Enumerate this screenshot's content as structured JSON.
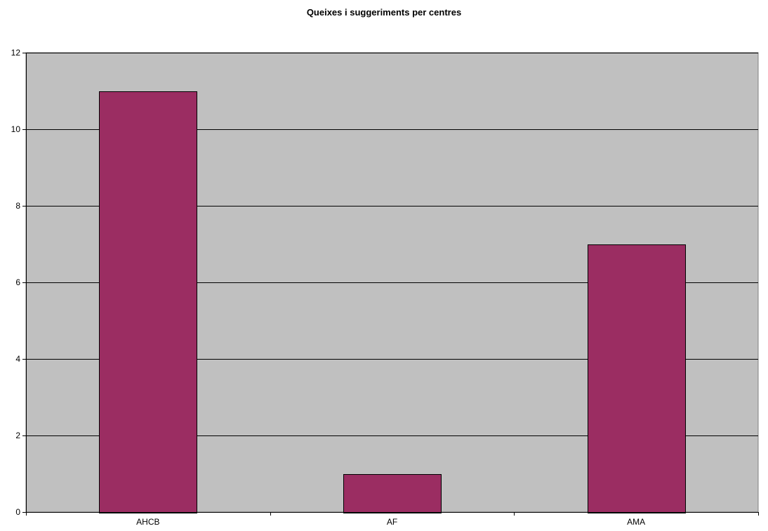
{
  "chart_data": {
    "type": "bar",
    "title": "Queixes i suggeriments per centres",
    "xlabel": "",
    "ylabel": "",
    "categories": [
      "AHCB",
      "AF",
      "AMA"
    ],
    "values": [
      11,
      1,
      7
    ],
    "ylim": [
      0,
      12
    ],
    "yticks": [
      0,
      2,
      4,
      6,
      8,
      10,
      12
    ],
    "grid": true,
    "legend": "none",
    "colors": {
      "bar": "#9B2D62",
      "plot_background": "#C0C0C0",
      "gridline": "#000000"
    }
  }
}
